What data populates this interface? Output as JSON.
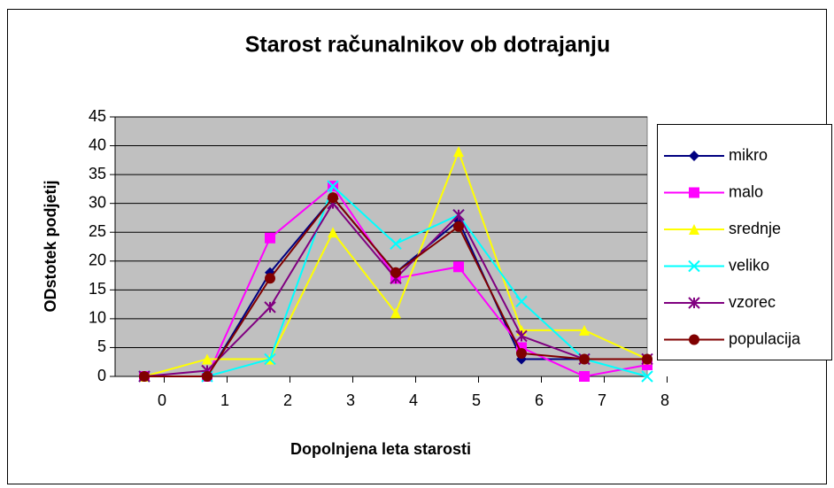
{
  "chart_data": {
    "type": "line",
    "title": "Starost računalnikov ob dotrajanju",
    "x_label": "Dopolnjena leta starosti",
    "y_label": "ODstotek podjetij",
    "categories": [
      "0",
      "1",
      "2",
      "3",
      "4",
      "5",
      "6",
      "7",
      "8"
    ],
    "ylim": [
      0,
      45
    ],
    "yticks": [
      0,
      5,
      10,
      15,
      20,
      25,
      30,
      35,
      40,
      45
    ],
    "grid": true,
    "legend": "right",
    "series": [
      {
        "name": "mikro",
        "color": "#000080",
        "marker": "diamond",
        "values": [
          0,
          0,
          18,
          31,
          18,
          27,
          3,
          3,
          3
        ]
      },
      {
        "name": "malo",
        "color": "#ff00ff",
        "marker": "square",
        "values": [
          0,
          0,
          24,
          33,
          17,
          19,
          5,
          0,
          2
        ]
      },
      {
        "name": "srednje",
        "color": "#ffff00",
        "marker": "triangle",
        "values": [
          0,
          3,
          3,
          25,
          11,
          39,
          8,
          8,
          3
        ]
      },
      {
        "name": "veliko",
        "color": "#00ffff",
        "marker": "x",
        "values": [
          0,
          0,
          3,
          33,
          23,
          28,
          13,
          3,
          0
        ]
      },
      {
        "name": "vzorec",
        "color": "#800080",
        "marker": "star",
        "values": [
          0,
          1,
          12,
          30,
          17,
          28,
          7,
          3,
          3
        ]
      },
      {
        "name": "populacija",
        "color": "#800000",
        "marker": "circle",
        "values": [
          0,
          0,
          17,
          31,
          18,
          26,
          4,
          3,
          3
        ]
      }
    ]
  }
}
